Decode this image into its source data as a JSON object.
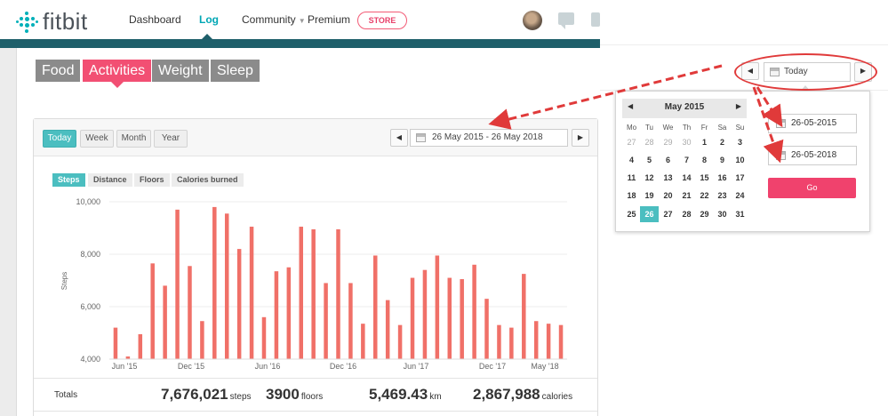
{
  "nav": {
    "logo_text": "fitbit",
    "items": [
      {
        "label": "Dashboard"
      },
      {
        "label": "Log"
      },
      {
        "label": "Community"
      },
      {
        "label": "Premium"
      }
    ],
    "store_label": "STORE",
    "active_item": "Log",
    "brand_color": "#00b0b9",
    "header_bar_color": "#1e5f6a"
  },
  "category_tabs": [
    {
      "label": "Food"
    },
    {
      "label": "Activities"
    },
    {
      "label": "Weight"
    },
    {
      "label": "Sleep"
    }
  ],
  "category_active": "Activities",
  "period_buttons": [
    {
      "label": "Today"
    },
    {
      "label": "Week"
    },
    {
      "label": "Month"
    },
    {
      "label": "Year"
    }
  ],
  "period_active": "Today",
  "range": {
    "label": "26 May 2015 - 26 May 2018",
    "prev_icon": "left-triangle-icon",
    "next_icon": "right-triangle-icon"
  },
  "metric_tabs": [
    {
      "label": "Steps"
    },
    {
      "label": "Distance"
    },
    {
      "label": "Floors"
    },
    {
      "label": "Calories burned"
    }
  ],
  "metric_active": "Steps",
  "chart_data": {
    "type": "bar",
    "ylabel": "Steps",
    "ylim": [
      4000,
      10000
    ],
    "yticks": [
      "4,000",
      "6,000",
      "8,000",
      "10,000"
    ],
    "ytick_values": [
      4000,
      6000,
      8000,
      10000
    ],
    "xtick_labels": [
      "Jun '15",
      "Dec '15",
      "Jun '16",
      "Dec '16",
      "Jun '17",
      "Dec '17",
      "May '18"
    ],
    "values": [
      5200,
      4100,
      4950,
      7650,
      6800,
      9700,
      7550,
      5450,
      9800,
      9550,
      8200,
      9050,
      5600,
      7350,
      7500,
      9050,
      8950,
      6900,
      8950,
      6900,
      5350,
      7950,
      6250,
      5300,
      7100,
      7400,
      7950,
      7100,
      7050,
      7600,
      6300,
      5300,
      5200,
      7250,
      5450,
      5350,
      5300
    ],
    "bar_color": "#f07068",
    "grid": true
  },
  "totals": {
    "label": "Totals",
    "steps_value": "7,676,021",
    "steps_unit": "steps",
    "floors_value": "3900",
    "floors_unit": "floors",
    "km_value": "5,469.43",
    "km_unit": "km",
    "calories_value": "2,867,988",
    "calories_unit": "calories"
  },
  "date_picker": {
    "today_label": "Today",
    "month_title": "May 2015",
    "weekdays": [
      "Mo",
      "Tu",
      "We",
      "Th",
      "Fr",
      "Sa",
      "Su"
    ],
    "weeks": [
      [
        {
          "d": "27",
          "m": true
        },
        {
          "d": "28",
          "m": true
        },
        {
          "d": "29",
          "m": true
        },
        {
          "d": "30",
          "m": true
        },
        {
          "d": "1"
        },
        {
          "d": "2"
        },
        {
          "d": "3"
        }
      ],
      [
        {
          "d": "4"
        },
        {
          "d": "5"
        },
        {
          "d": "6"
        },
        {
          "d": "7"
        },
        {
          "d": "8"
        },
        {
          "d": "9"
        },
        {
          "d": "10"
        }
      ],
      [
        {
          "d": "11"
        },
        {
          "d": "12"
        },
        {
          "d": "13"
        },
        {
          "d": "14"
        },
        {
          "d": "15"
        },
        {
          "d": "16"
        },
        {
          "d": "17"
        }
      ],
      [
        {
          "d": "18"
        },
        {
          "d": "19"
        },
        {
          "d": "20"
        },
        {
          "d": "21"
        },
        {
          "d": "22"
        },
        {
          "d": "23"
        },
        {
          "d": "24"
        }
      ],
      [
        {
          "d": "25"
        },
        {
          "d": "26",
          "s": true
        },
        {
          "d": "27"
        },
        {
          "d": "28"
        },
        {
          "d": "29"
        },
        {
          "d": "30"
        },
        {
          "d": "31"
        }
      ]
    ],
    "start_date": "26-05-2015",
    "end_date": "26-05-2018",
    "go_label": "Go",
    "selected_color": "#4bbec0",
    "go_color": "#f0426d"
  },
  "annotation_color": "#e03a3a"
}
